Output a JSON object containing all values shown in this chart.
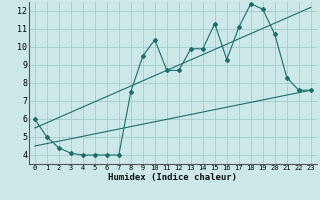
{
  "title": "",
  "xlabel": "Humidex (Indice chaleur)",
  "ylabel": "",
  "bg_color": "#cce8e8",
  "grid_color": "#aacfcf",
  "line_color": "#1a6e6e",
  "xlim": [
    -0.5,
    23.5
  ],
  "ylim": [
    3.5,
    12.5
  ],
  "xticks": [
    0,
    1,
    2,
    3,
    4,
    5,
    6,
    7,
    8,
    9,
    10,
    11,
    12,
    13,
    14,
    15,
    16,
    17,
    18,
    19,
    20,
    21,
    22,
    23
  ],
  "yticks": [
    4,
    5,
    6,
    7,
    8,
    9,
    10,
    11,
    12
  ],
  "data_x": [
    0,
    1,
    2,
    3,
    4,
    5,
    6,
    7,
    8,
    9,
    10,
    11,
    12,
    13,
    14,
    15,
    16,
    17,
    18,
    19,
    20,
    21,
    22,
    23
  ],
  "data_y": [
    6.0,
    5.0,
    4.4,
    4.1,
    4.0,
    4.0,
    4.0,
    4.0,
    7.5,
    9.5,
    10.4,
    8.7,
    8.7,
    9.9,
    9.9,
    11.3,
    9.3,
    11.1,
    12.4,
    12.1,
    10.7,
    8.3,
    7.6,
    7.6
  ],
  "trend1_x": [
    0,
    23
  ],
  "trend1_y": [
    4.5,
    7.6
  ],
  "trend2_x": [
    0,
    23
  ],
  "trend2_y": [
    5.5,
    12.2
  ]
}
